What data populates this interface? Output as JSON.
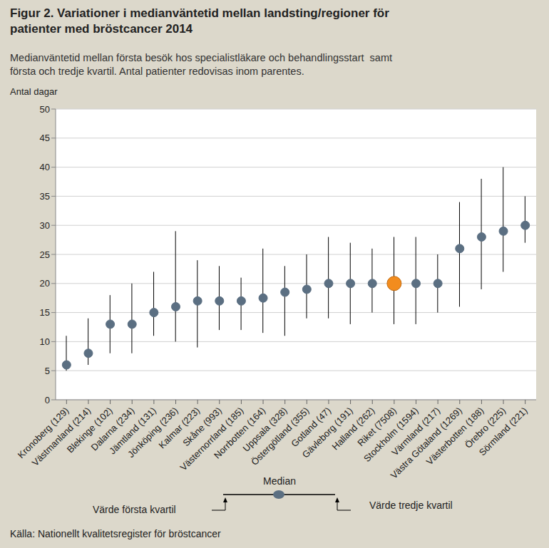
{
  "chart_data": {
    "type": "scatter",
    "title": [
      "Figur 2. Variationer i medianväntetid mellan landsting/regioner för",
      "patienter med bröstcancer 2014"
    ],
    "subtitle": [
      "Medianväntetid mellan första besök hos specialistläkare och behandlingsstart  samt",
      "första och tredje kvartil. Antal patienter redovisas inom parentes."
    ],
    "y_label": "Antal dagar",
    "categories": [
      "Kronoberg (129)",
      "Västmanland (214)",
      "Blekinge (102)",
      "Dalarna (234)",
      "Jämtland (131)",
      "Jönköping (236)",
      "Kalmar (223)",
      "Skåne (993)",
      "Västernorrland (185)",
      "Norrbotten (164)",
      "Uppsala (328)",
      "Östergötland (355)",
      "Gotland (47)",
      "Gävleborg (191)",
      "Halland (262)",
      "Riket (7508)",
      "Stockholm (1594)",
      "Värmland (217)",
      "Västra Götaland (1269)",
      "Västerbotten (188)",
      "Örebro (225)",
      "Sörmland (221)"
    ],
    "values": [
      6,
      8,
      13,
      13,
      15,
      16,
      17,
      17,
      17,
      17.5,
      18.5,
      19,
      20,
      20,
      20,
      20,
      20,
      20,
      26,
      28,
      29,
      30
    ],
    "q1": [
      5,
      6,
      8,
      8,
      11,
      10,
      9,
      12,
      12,
      11.5,
      11,
      14,
      14,
      13,
      15,
      13,
      13,
      15,
      16,
      19,
      22,
      27
    ],
    "q3": [
      11,
      14,
      18,
      20,
      22,
      29,
      24,
      23,
      21,
      26,
      23,
      25,
      28,
      27,
      26,
      28,
      28,
      25,
      34,
      38,
      40,
      35
    ],
    "colors": [
      "#5b6f82",
      "#5b6f82",
      "#5b6f82",
      "#5b6f82",
      "#5b6f82",
      "#5b6f82",
      "#5b6f82",
      "#5b6f82",
      "#5b6f82",
      "#5b6f82",
      "#5b6f82",
      "#5b6f82",
      "#5b6f82",
      "#5b6f82",
      "#5b6f82",
      "#f28c1e",
      "#5b6f82",
      "#5b6f82",
      "#5b6f82",
      "#5b6f82",
      "#5b6f82",
      "#5b6f82"
    ],
    "ylim": [
      0,
      50
    ],
    "yticks": [
      0,
      5,
      10,
      15,
      20,
      25,
      30,
      35,
      40,
      45,
      50
    ],
    "grid": true,
    "annotations": {
      "median": "Median",
      "first_quartile": "Värde första kvartil",
      "third_quartile": "Värde tredje kvartil"
    },
    "source": "Källa: Nationellt kvalitetsregister för bröstcancer"
  }
}
